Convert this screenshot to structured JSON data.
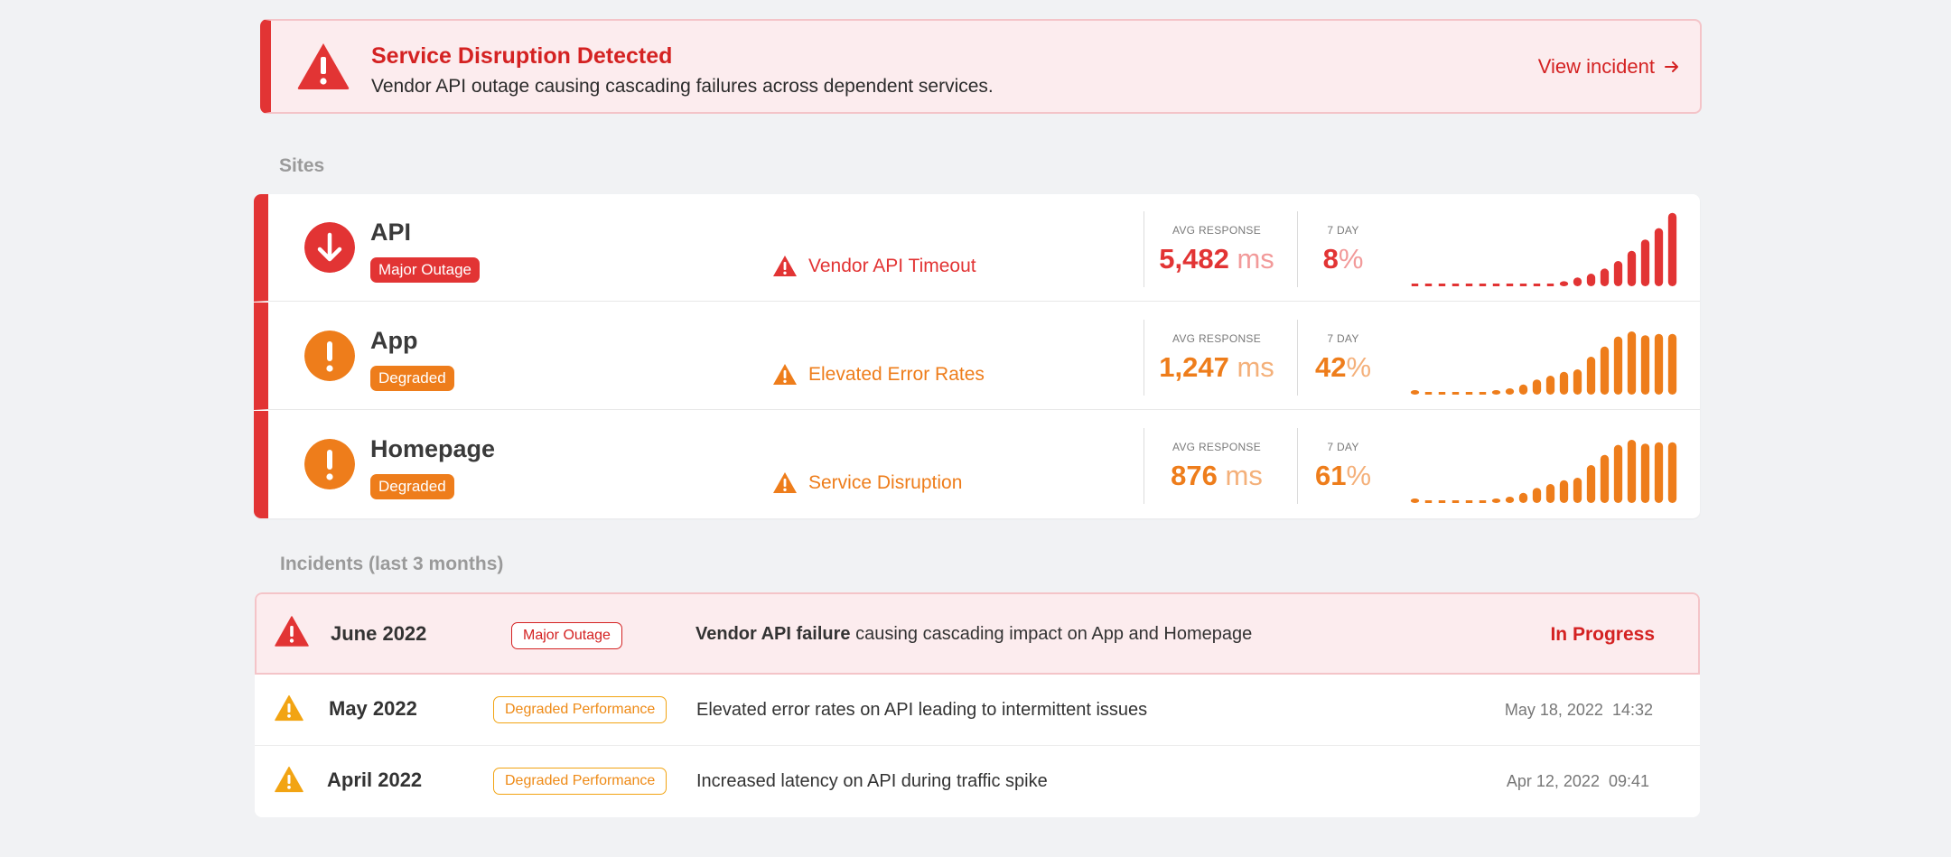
{
  "alert": {
    "title": "Service Disruption Detected",
    "description": "Vendor API outage causing cascading failures across dependent services.",
    "link_label": "View incident",
    "color": "#e23434"
  },
  "sites": {
    "heading": "Sites",
    "metric_labels": {
      "avg": "AVG RESPONSE",
      "uptime": "7 DAY"
    },
    "items": [
      {
        "name": "API",
        "badge": "Major Outage",
        "issue": "Vendor API Timeout",
        "icon": "arrow-down-icon",
        "color": "#e23434",
        "light": "#f29a9a",
        "avg_value": "5,482",
        "avg_unit": "ms",
        "uptime_value": "8",
        "uptime_unit": "%",
        "sparkline": [
          0,
          0,
          0,
          0,
          0,
          0,
          0,
          0,
          0,
          0,
          0,
          4,
          7,
          10,
          14,
          20,
          28,
          37,
          46,
          58
        ]
      },
      {
        "name": "App",
        "badge": "Degraded",
        "issue": "Elevated Error Rates",
        "icon": "exclamation-icon",
        "color": "#ee7d1b",
        "light": "#f4b07a",
        "avg_value": "1,247",
        "avg_unit": "ms",
        "uptime_value": "42",
        "uptime_unit": "%",
        "sparkline": [
          3,
          0,
          0,
          0,
          0,
          0,
          3,
          5,
          8,
          12,
          15,
          18,
          20,
          30,
          38,
          46,
          50,
          47,
          48,
          48
        ]
      },
      {
        "name": "Homepage",
        "badge": "Degraded",
        "issue": "Service Disruption",
        "icon": "exclamation-icon",
        "color": "#ee7d1b",
        "light": "#f4b07a",
        "avg_value": "876",
        "avg_unit": "ms",
        "uptime_value": "61",
        "uptime_unit": "%",
        "sparkline": [
          3,
          0,
          0,
          0,
          0,
          0,
          3,
          5,
          8,
          12,
          15,
          18,
          20,
          30,
          38,
          46,
          50,
          47,
          48,
          48
        ]
      }
    ]
  },
  "incidents": {
    "heading": "Incidents (last 3 months)",
    "items": [
      {
        "month": "June 2022",
        "badge": "Major Outage",
        "desc_bold": "Vendor API failure",
        "desc_rest": " causing cascading impact on App and Homepage",
        "status": "In Progress",
        "color": "#e23434"
      },
      {
        "month": "May 2022",
        "badge": "Degraded Performance",
        "desc": "Elevated error rates on API leading to intermittent issues",
        "date": "May 18, 2022  14:32",
        "color": "#f2a413"
      },
      {
        "month": "April 2022",
        "badge": "Degraded Performance",
        "desc": "Increased latency on API during traffic spike",
        "date": "Apr 12, 2022  09:41",
        "color": "#f2a413"
      }
    ]
  }
}
